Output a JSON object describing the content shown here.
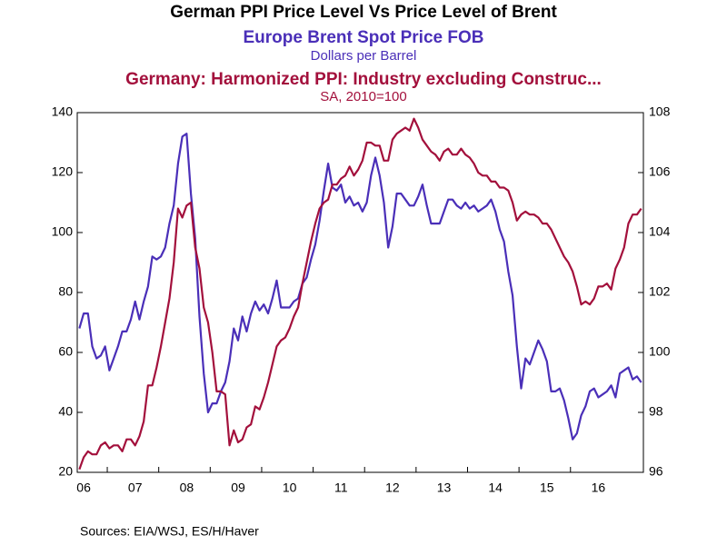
{
  "chart_data": {
    "type": "line",
    "title": "German PPI Price Level Vs Price Level of Brent",
    "y_label": "Dollars per Barrel",
    "y2_label": "SA, 2010=100",
    "source": "Sources:  EIA/WSJ, ES/H/Haver",
    "categories": [
      null,
      "06",
      null,
      null,
      null,
      null,
      null,
      null,
      null,
      null,
      null,
      null,
      null,
      "07",
      null,
      null,
      null,
      null,
      null,
      null,
      null,
      null,
      null,
      null,
      null,
      "08",
      null,
      null,
      null,
      null,
      null,
      null,
      null,
      null,
      null,
      null,
      null,
      "09",
      null,
      null,
      null,
      null,
      null,
      null,
      null,
      null,
      null,
      null,
      null,
      "10",
      null,
      null,
      null,
      null,
      null,
      null,
      null,
      null,
      null,
      null,
      null,
      "11",
      null,
      null,
      null,
      null,
      null,
      null,
      null,
      null,
      null,
      null,
      null,
      "12",
      null,
      null,
      null,
      null,
      null,
      null,
      null,
      null,
      null,
      null,
      null,
      "13",
      null,
      null,
      null,
      null,
      null,
      null,
      null,
      null,
      null,
      null,
      null,
      "14",
      null,
      null,
      null,
      null,
      null,
      null,
      null,
      null,
      null,
      null,
      null,
      "15",
      null,
      null,
      null,
      null,
      null,
      null,
      null,
      null,
      null,
      null,
      null,
      "16",
      null,
      null,
      null,
      null,
      null,
      null,
      null,
      null,
      null,
      null
    ],
    "series": [
      {
        "name": "Europe Brent Spot Price FOB",
        "color": "#4a2fb8",
        "axis": "y",
        "values": [
          68,
          73,
          73,
          62,
          58,
          59,
          62,
          54,
          58,
          62,
          67,
          67,
          71,
          77,
          71,
          77,
          82,
          92,
          91,
          92,
          95,
          103,
          109,
          123,
          132,
          133,
          113,
          98,
          72,
          53,
          40,
          43,
          43,
          47,
          50,
          57,
          68,
          64,
          72,
          67,
          73,
          77,
          74,
          76,
          73,
          78,
          84,
          75,
          75,
          75,
          77,
          78,
          83,
          85,
          91,
          96,
          104,
          114,
          123,
          115,
          114,
          116,
          110,
          112,
          109,
          110,
          107,
          110,
          119,
          125,
          119,
          110,
          95,
          102,
          113,
          113,
          111,
          109,
          109,
          112,
          116,
          109,
          103,
          103,
          103,
          107,
          111,
          111,
          109,
          108,
          110,
          108,
          109,
          107,
          108,
          109,
          111,
          107,
          101,
          97,
          87,
          79,
          62,
          48,
          58,
          56,
          60,
          64,
          61,
          57,
          47,
          47,
          48,
          44,
          38,
          31,
          33,
          39,
          42,
          47,
          48,
          45,
          46,
          47,
          49,
          45,
          53,
          54,
          55,
          51,
          52,
          50
        ]
      },
      {
        "name": "Germany: Harmonized PPI: Industry excluding Construc...",
        "color": "#a3103c",
        "axis": "y2",
        "values": [
          96.1,
          96.5,
          96.7,
          96.6,
          96.6,
          96.9,
          97.0,
          96.8,
          96.9,
          96.9,
          96.7,
          97.1,
          97.1,
          96.9,
          97.2,
          97.7,
          98.9,
          98.9,
          99.5,
          100.2,
          101.0,
          101.8,
          103.0,
          104.8,
          104.5,
          104.9,
          105.0,
          103.5,
          102.8,
          101.5,
          101.0,
          100.0,
          98.7,
          98.7,
          98.6,
          96.9,
          97.4,
          97.0,
          97.1,
          97.5,
          97.6,
          98.2,
          98.1,
          98.5,
          99.0,
          99.6,
          100.2,
          100.4,
          100.5,
          100.8,
          101.2,
          101.5,
          102.3,
          103.0,
          103.7,
          104.3,
          104.8,
          105.0,
          105.1,
          105.6,
          105.6,
          105.8,
          105.9,
          106.2,
          105.9,
          106.1,
          106.4,
          107.0,
          107.0,
          106.9,
          106.9,
          106.4,
          106.4,
          107.1,
          107.3,
          107.4,
          107.5,
          107.4,
          107.8,
          107.5,
          107.1,
          106.9,
          106.7,
          106.6,
          106.4,
          106.7,
          106.8,
          106.6,
          106.6,
          106.8,
          106.6,
          106.5,
          106.3,
          106.0,
          105.9,
          105.9,
          105.7,
          105.7,
          105.5,
          105.5,
          105.4,
          105.0,
          104.4,
          104.6,
          104.7,
          104.6,
          104.6,
          104.5,
          104.3,
          104.3,
          104.1,
          103.8,
          103.5,
          103.2,
          103.0,
          102.7,
          102.2,
          101.6,
          101.7,
          101.6,
          101.8,
          102.2,
          102.2,
          102.3,
          102.1,
          102.8,
          103.1,
          103.5,
          104.3,
          104.6,
          104.6,
          104.8
        ]
      }
    ],
    "ylim": [
      20,
      140
    ],
    "yticks": [
      20,
      40,
      60,
      80,
      100,
      120,
      140
    ],
    "y2lim": [
      96,
      108
    ],
    "y2ticks": [
      96,
      98,
      100,
      102,
      104,
      106,
      108
    ],
    "grid": false
  }
}
